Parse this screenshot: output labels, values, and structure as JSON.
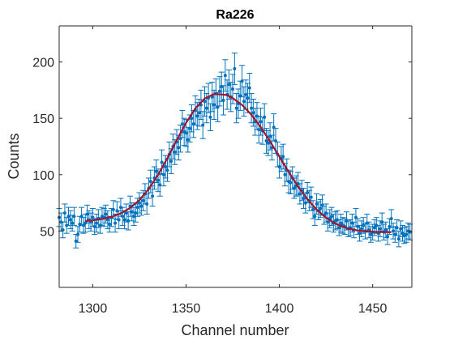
{
  "chart_data": {
    "type": "scatter",
    "title": "Ra226",
    "xlabel": "Channel number",
    "ylabel": "Counts",
    "xlim": [
      1282,
      1471
    ],
    "ylim": [
      0,
      232
    ],
    "xticks": [
      1300,
      1350,
      1400,
      1450
    ],
    "yticks": [
      50,
      100,
      150,
      200
    ],
    "grid": false,
    "legend": "none",
    "colors": {
      "data": "#0072bd",
      "fit": "#a2142f",
      "axis": "#262626"
    },
    "series": [
      {
        "type": "errorbar",
        "x": [
          1282,
          1283,
          1284,
          1285,
          1286,
          1287,
          1288,
          1289,
          1290,
          1291,
          1292,
          1293,
          1294,
          1295,
          1296,
          1297,
          1298,
          1299,
          1300,
          1301,
          1302,
          1303,
          1304,
          1305,
          1306,
          1307,
          1308,
          1309,
          1310,
          1311,
          1312,
          1313,
          1314,
          1315,
          1316,
          1317,
          1318,
          1319,
          1320,
          1321,
          1322,
          1323,
          1324,
          1325,
          1326,
          1327,
          1328,
          1329,
          1330,
          1331,
          1332,
          1333,
          1334,
          1335,
          1336,
          1337,
          1338,
          1339,
          1340,
          1341,
          1342,
          1343,
          1344,
          1345,
          1346,
          1347,
          1348,
          1349,
          1350,
          1351,
          1352,
          1353,
          1354,
          1355,
          1356,
          1357,
          1358,
          1359,
          1360,
          1361,
          1362,
          1363,
          1364,
          1365,
          1366,
          1367,
          1368,
          1369,
          1370,
          1371,
          1372,
          1373,
          1374,
          1375,
          1376,
          1377,
          1378,
          1379,
          1380,
          1381,
          1382,
          1383,
          1384,
          1385,
          1386,
          1387,
          1388,
          1389,
          1390,
          1391,
          1392,
          1393,
          1394,
          1395,
          1396,
          1397,
          1398,
          1399,
          1400,
          1401,
          1402,
          1403,
          1404,
          1405,
          1406,
          1407,
          1408,
          1409,
          1410,
          1411,
          1412,
          1413,
          1414,
          1415,
          1416,
          1417,
          1418,
          1419,
          1420,
          1421,
          1422,
          1423,
          1424,
          1425,
          1426,
          1427,
          1428,
          1429,
          1430,
          1431,
          1432,
          1433,
          1434,
          1435,
          1436,
          1437,
          1438,
          1439,
          1440,
          1441,
          1442,
          1443,
          1444,
          1445,
          1446,
          1447,
          1448,
          1449,
          1450,
          1451,
          1452,
          1453,
          1454,
          1455,
          1456,
          1457,
          1458,
          1459,
          1460,
          1461,
          1462,
          1463,
          1464,
          1465,
          1466,
          1467,
          1468,
          1469,
          1470
        ],
        "y": [
          62,
          58,
          51,
          66,
          55,
          63,
          60,
          57,
          63,
          41,
          47,
          56,
          63,
          55,
          57,
          65,
          60,
          58,
          62,
          54,
          57,
          61,
          55,
          63,
          62,
          65,
          60,
          56,
          62,
          69,
          57,
          68,
          60,
          71,
          63,
          60,
          66,
          59,
          72,
          67,
          63,
          66,
          71,
          75,
          72,
          77,
          83,
          74,
          88,
          94,
          81,
          97,
          103,
          95,
          91,
          111,
          100,
          107,
          104,
          118,
          112,
          125,
          120,
          129,
          124,
          132,
          145,
          138,
          137,
          131,
          141,
          150,
          145,
          157,
          152,
          155,
          162,
          144,
          165,
          159,
          168,
          151,
          169,
          162,
          172,
          160,
          174,
          178,
          166,
          188,
          171,
          180,
          169,
          176,
          194,
          159,
          163,
          170,
          183,
          165,
          171,
          168,
          177,
          159,
          155,
          147,
          152,
          140,
          147,
          139,
          151,
          130,
          128,
          134,
          124,
          142,
          130,
          118,
          107,
          114,
          116,
          100,
          104,
          94,
          93,
          97,
          88,
          90,
          92,
          83,
          86,
          79,
          75,
          84,
          77,
          80,
          69,
          63,
          74,
          68,
          70,
          73,
          64,
          66,
          58,
          61,
          63,
          57,
          59,
          60,
          53,
          57,
          55,
          54,
          59,
          52,
          53,
          57,
          51,
          62,
          54,
          48,
          52,
          55,
          50,
          57,
          51,
          47,
          49,
          53,
          55,
          48,
          52,
          58,
          49,
          51,
          45,
          54,
          61,
          50,
          47,
          53,
          43,
          52,
          48,
          46,
          47,
          50,
          49
        ],
        "err": [
          8,
          8,
          7,
          8,
          7,
          8,
          8,
          7,
          8,
          6,
          7,
          7,
          8,
          7,
          8,
          8,
          8,
          8,
          8,
          7,
          8,
          8,
          7,
          8,
          8,
          8,
          8,
          7,
          8,
          8,
          8,
          8,
          8,
          8,
          8,
          8,
          8,
          8,
          9,
          8,
          8,
          8,
          8,
          9,
          8,
          9,
          9,
          9,
          9,
          10,
          9,
          10,
          10,
          10,
          10,
          11,
          10,
          10,
          10,
          11,
          11,
          11,
          11,
          11,
          11,
          12,
          12,
          12,
          12,
          11,
          12,
          12,
          12,
          13,
          12,
          12,
          13,
          12,
          13,
          13,
          13,
          12,
          13,
          13,
          13,
          13,
          13,
          13,
          13,
          14,
          13,
          13,
          13,
          13,
          14,
          13,
          13,
          13,
          14,
          13,
          13,
          13,
          13,
          13,
          12,
          12,
          12,
          12,
          12,
          12,
          12,
          11,
          11,
          12,
          11,
          12,
          11,
          11,
          10,
          11,
          11,
          10,
          10,
          10,
          10,
          10,
          9,
          9,
          10,
          9,
          9,
          9,
          9,
          9,
          9,
          9,
          8,
          8,
          9,
          8,
          8,
          9,
          8,
          8,
          8,
          8,
          8,
          8,
          8,
          8,
          7,
          8,
          7,
          7,
          8,
          7,
          7,
          8,
          7,
          8,
          7,
          7,
          7,
          7,
          7,
          8,
          7,
          7,
          7,
          7,
          7,
          7,
          7,
          8,
          7,
          7,
          7,
          7,
          8,
          7,
          7,
          7,
          7,
          7,
          7,
          7,
          7,
          7,
          7
        ]
      },
      {
        "type": "line",
        "x": [
          1296,
          1300,
          1305,
          1310,
          1315,
          1320,
          1325,
          1330,
          1335,
          1340,
          1345,
          1350,
          1355,
          1360,
          1365,
          1370,
          1372,
          1375,
          1380,
          1385,
          1390,
          1395,
          1400,
          1405,
          1410,
          1415,
          1420,
          1425,
          1430,
          1435,
          1440,
          1445,
          1450,
          1455,
          1460
        ],
        "y": [
          58.9,
          59.5,
          60.7,
          62.6,
          65.6,
          70.4,
          77.5,
          87.3,
          99.9,
          114.7,
          130.6,
          146,
          158.9,
          167.6,
          171.6,
          171.1,
          170.5,
          167.9,
          161.9,
          153.2,
          142.2,
          129.5,
          116,
          102.4,
          89.6,
          78.3,
          69,
          61.8,
          56.6,
          53.1,
          51,
          49.9,
          49.3,
          49.1,
          49
        ]
      }
    ]
  }
}
